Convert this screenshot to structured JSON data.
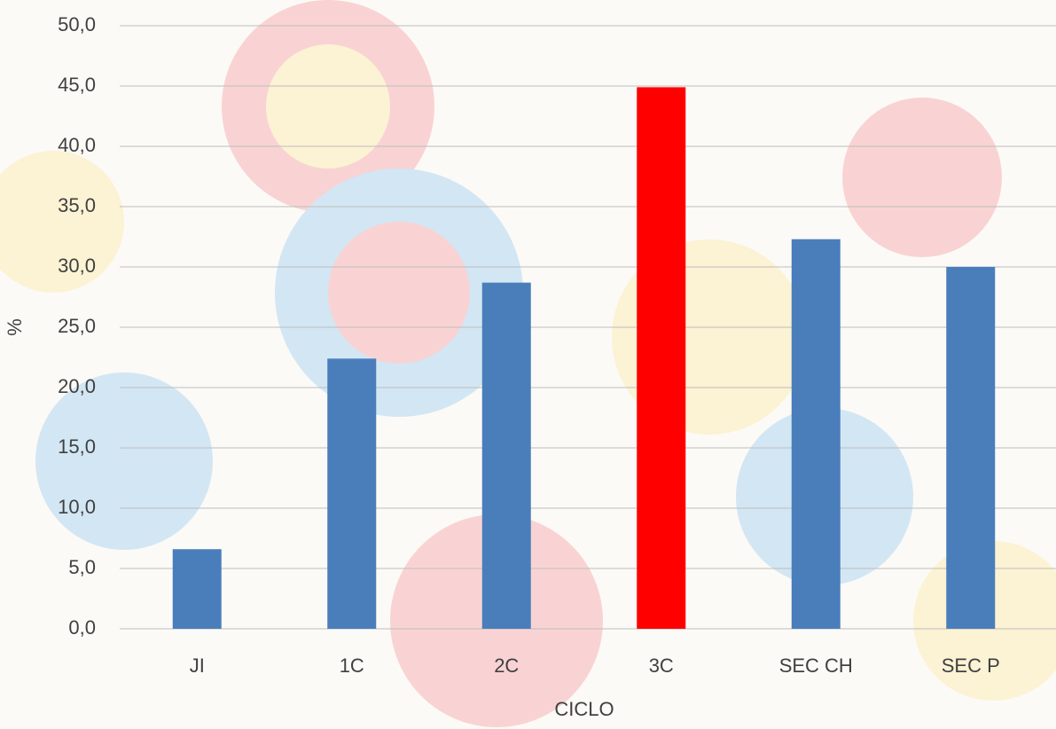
{
  "chart_data": {
    "type": "bar",
    "x_label": "CICLO",
    "y_label": "%",
    "categories": [
      "JI",
      "1C",
      "2C",
      "3C",
      "SEC CH",
      "SEC P"
    ],
    "values": [
      6.6,
      22.4,
      28.7,
      44.9,
      32.3,
      30.0
    ],
    "colors": [
      "#4a7ebb",
      "#4a7ebb",
      "#4a7ebb",
      "#ff0000",
      "#4a7ebb",
      "#4a7ebb"
    ],
    "ylim": [
      0,
      50
    ],
    "yticks": [
      {
        "value": 0,
        "label": "0,0"
      },
      {
        "value": 5,
        "label": "5,0"
      },
      {
        "value": 10,
        "label": "10,0"
      },
      {
        "value": 15,
        "label": "15,0"
      },
      {
        "value": 20,
        "label": "20,0"
      },
      {
        "value": 25,
        "label": "25,0"
      },
      {
        "value": 30,
        "label": "30,0"
      },
      {
        "value": 35,
        "label": "35,0"
      },
      {
        "value": 40,
        "label": "40,0"
      },
      {
        "value": 45,
        "label": "45,0"
      },
      {
        "value": 50,
        "label": "50,0"
      }
    ],
    "grid": true
  }
}
